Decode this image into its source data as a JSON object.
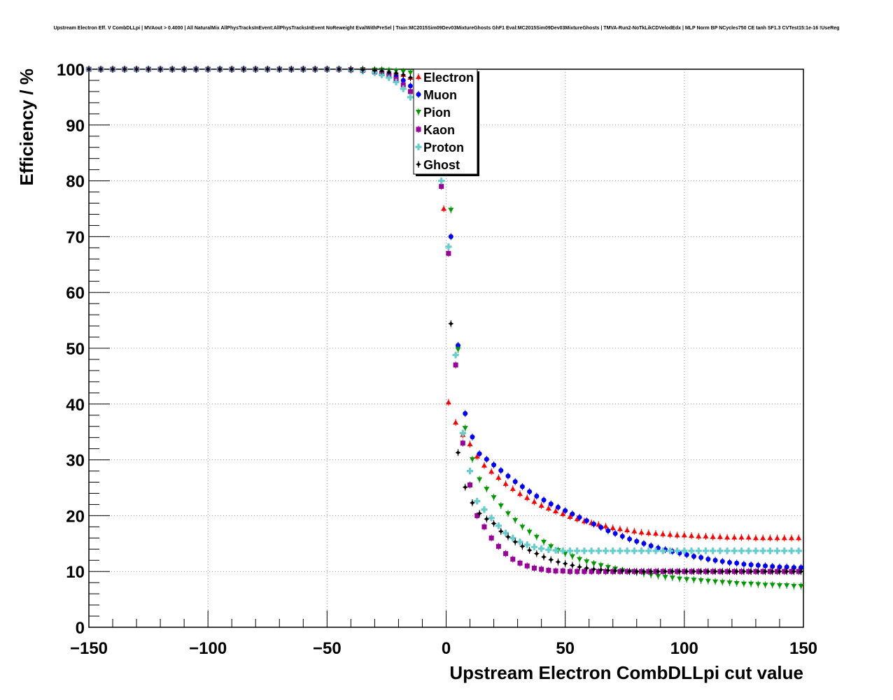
{
  "chart_data": {
    "type": "scatter",
    "title": "Upstream Electron Eff. V CombDLLpi | MVAout > 0.4000 | All NaturalMix AllPhysTracksInEvent:AllPhysTracksInEvent NoReweight EvalWithPreSel | Train:MC2015Sim09Dev03MixtureGhosts GhF1 Eval:MC2015Sim09Dev03MixtureGhosts | TMVA-Run2-NoTkLikCDVelodEdx | MLP Norm BP NCycles750 CE tanh SF1.3 CVTest15:1e-16 !UseReg",
    "xlabel": "Upstream Electron CombDLLpi cut value",
    "ylabel": "Efficiency / %",
    "xlim": [
      -150,
      150
    ],
    "ylim": [
      0,
      100
    ],
    "xticks": [
      -150,
      -100,
      -50,
      0,
      50,
      100,
      150
    ],
    "xtick_labels": [
      "−150",
      "−100",
      "−50",
      "0",
      "50",
      "100",
      "150"
    ],
    "yticks": [
      0,
      10,
      20,
      30,
      40,
      50,
      60,
      70,
      80,
      90,
      100
    ],
    "grid": true,
    "legend_position": "top-center",
    "series": [
      {
        "name": "Electron",
        "color": "#ff0000",
        "marker": "triangle-up",
        "x": [
          -150,
          -145,
          -140,
          -135,
          -130,
          -125,
          -120,
          -115,
          -110,
          -105,
          -100,
          -95,
          -90,
          -85,
          -80,
          -75,
          -70,
          -65,
          -60,
          -55,
          -50,
          -45,
          -40,
          -35,
          -30,
          -27,
          -24,
          -21,
          -18,
          -15,
          -12,
          -9,
          -6,
          -3,
          -1,
          1,
          4,
          7,
          10,
          13,
          16,
          19,
          22,
          25,
          28,
          31,
          34,
          37,
          40,
          43,
          46,
          49,
          52,
          55,
          58,
          61,
          64,
          67,
          70,
          73,
          76,
          79,
          82,
          85,
          88,
          91,
          94,
          97,
          100,
          103,
          106,
          109,
          112,
          115,
          118,
          121,
          124,
          127,
          130,
          133,
          136,
          139,
          142,
          145,
          148
        ],
        "y": [
          100,
          100,
          100,
          100,
          100,
          100,
          100,
          100,
          100,
          100,
          100,
          100,
          100,
          100,
          100,
          100,
          100,
          100,
          100,
          100,
          100,
          100,
          100,
          99.9,
          99.8,
          99.7,
          99.5,
          99.3,
          99,
          98.5,
          97.5,
          95.5,
          91,
          84,
          75,
          40.3,
          36.7,
          34.5,
          32.8,
          30.6,
          29,
          27.9,
          26.8,
          25.7,
          24.8,
          23.9,
          23.2,
          22.5,
          21.8,
          21.3,
          20.8,
          20.3,
          19.8,
          19.4,
          19,
          18.7,
          18.4,
          18.1,
          17.8,
          17.6,
          17.4,
          17.2,
          17,
          16.9,
          16.8,
          16.7,
          16.6,
          16.5,
          16.5,
          16.4,
          16.3,
          16.3,
          16.2,
          16.2,
          16.1,
          16.1,
          16.1,
          16.1,
          16,
          16,
          16,
          16,
          16,
          16,
          16
        ]
      },
      {
        "name": "Muon",
        "color": "#0000ff",
        "marker": "circle",
        "x": [
          -150,
          -145,
          -140,
          -135,
          -130,
          -125,
          -120,
          -115,
          -110,
          -105,
          -100,
          -95,
          -90,
          -85,
          -80,
          -75,
          -70,
          -65,
          -60,
          -55,
          -50,
          -45,
          -40,
          -35,
          -30,
          -27,
          -24,
          -21,
          -18,
          -15,
          -12,
          -9,
          -6,
          -3,
          -1,
          2,
          5,
          8,
          11,
          14,
          17,
          20,
          23,
          26,
          29,
          32,
          35,
          38,
          41,
          44,
          47,
          50,
          53,
          56,
          59,
          62,
          65,
          68,
          71,
          74,
          77,
          80,
          83,
          86,
          89,
          92,
          95,
          98,
          101,
          104,
          107,
          110,
          113,
          116,
          119,
          122,
          125,
          128,
          131,
          134,
          137,
          140,
          143,
          146,
          149
        ],
        "y": [
          100,
          100,
          100,
          100,
          100,
          100,
          100,
          100,
          100,
          100,
          100,
          100,
          100,
          100,
          100,
          100,
          100,
          100,
          100,
          100,
          100,
          100,
          99.9,
          99.8,
          99.6,
          99.4,
          99.1,
          98.7,
          98,
          97,
          95.8,
          94.5,
          92,
          88,
          82,
          70,
          50.5,
          38.3,
          34.1,
          31.1,
          30.1,
          29.1,
          28.1,
          27.1,
          26.1,
          25.2,
          24.3,
          23.5,
          22.8,
          22.1,
          21.5,
          20.9,
          20.3,
          19.7,
          19.1,
          18.5,
          17.9,
          17.3,
          16.8,
          16.3,
          15.8,
          15.4,
          15,
          14.6,
          14.2,
          13.9,
          13.6,
          13.3,
          13,
          12.7,
          12.5,
          12.2,
          12,
          11.8,
          11.6,
          11.5,
          11.3,
          11.2,
          11.1,
          11,
          10.9,
          10.8,
          10.8,
          10.7,
          10.7
        ]
      },
      {
        "name": "Pion",
        "color": "#009900",
        "marker": "triangle-down",
        "x": [
          -150,
          -145,
          -140,
          -135,
          -130,
          -125,
          -120,
          -115,
          -110,
          -105,
          -100,
          -95,
          -90,
          -85,
          -80,
          -75,
          -70,
          -65,
          -60,
          -55,
          -50,
          -45,
          -40,
          -35,
          -30,
          -27,
          -24,
          -21,
          -18,
          -15,
          -12,
          -9,
          -6,
          -3,
          0,
          2,
          5,
          8,
          11,
          14,
          17,
          20,
          23,
          26,
          29,
          32,
          35,
          38,
          41,
          44,
          47,
          50,
          53,
          56,
          59,
          62,
          65,
          68,
          71,
          74,
          77,
          80,
          83,
          86,
          89,
          92,
          95,
          98,
          101,
          104,
          107,
          110,
          113,
          116,
          119,
          122,
          125,
          128,
          131,
          134,
          137,
          140,
          143,
          146,
          149
        ],
        "y": [
          100,
          100,
          100,
          100,
          100,
          100,
          100,
          100,
          100,
          100,
          100,
          100,
          100,
          100,
          100,
          100,
          100,
          100,
          100,
          100,
          100,
          100,
          100,
          100,
          99.9,
          99.9,
          99.8,
          99.7,
          99.6,
          99.4,
          99,
          98.5,
          97,
          94,
          88,
          74.8,
          49.8,
          35.7,
          30.1,
          26.5,
          24.8,
          23.3,
          21.8,
          20.4,
          19.2,
          18,
          17.1,
          16.2,
          15.3,
          14.5,
          13.8,
          13.2,
          12.7,
          12.2,
          11.8,
          11.4,
          11.1,
          10.8,
          10.5,
          10.2,
          10,
          9.8,
          9.6,
          9.4,
          9.2,
          9,
          8.9,
          8.7,
          8.6,
          8.5,
          8.4,
          8.3,
          8.2,
          8.1,
          8,
          7.9,
          7.8,
          7.8,
          7.7,
          7.6,
          7.6,
          7.5,
          7.5,
          7.4,
          7.4
        ]
      },
      {
        "name": "Kaon",
        "color": "#990099",
        "marker": "square",
        "x": [
          -150,
          -145,
          -140,
          -135,
          -130,
          -125,
          -120,
          -115,
          -110,
          -105,
          -100,
          -95,
          -90,
          -85,
          -80,
          -75,
          -70,
          -65,
          -60,
          -55,
          -50,
          -45,
          -40,
          -35,
          -30,
          -27,
          -24,
          -21,
          -18,
          -15,
          -12,
          -9,
          -6,
          -3,
          -2,
          1,
          4,
          7,
          10,
          13,
          16,
          19,
          22,
          25,
          28,
          31,
          34,
          37,
          40,
          43,
          46,
          49,
          52,
          55,
          58,
          61,
          64,
          67,
          70,
          73,
          76,
          79,
          82,
          85,
          88,
          91,
          94,
          97,
          100,
          103,
          106,
          109,
          112,
          115,
          118,
          121,
          124,
          127,
          130,
          133,
          136,
          139,
          142,
          145,
          148
        ],
        "y": [
          100,
          100,
          100,
          100,
          100,
          100,
          100,
          100,
          100,
          100,
          100,
          100,
          100,
          100,
          100,
          100,
          100,
          100,
          100,
          100,
          100,
          100,
          99.9,
          99.8,
          99.5,
          99.2,
          98.8,
          98.2,
          97.2,
          96,
          94.8,
          92.5,
          89.5,
          85,
          79,
          67,
          47,
          33,
          25.5,
          20,
          18,
          16,
          14.5,
          13.2,
          12.2,
          11.5,
          11,
          10.6,
          10.4,
          10.2,
          10.1,
          10.1,
          10,
          10,
          10,
          10,
          10,
          10,
          10,
          10,
          10,
          10,
          10,
          10,
          10,
          10,
          10,
          10,
          10,
          10,
          10,
          10,
          10,
          10,
          10,
          10,
          10,
          10,
          10,
          10,
          10,
          10,
          10,
          10,
          10
        ]
      },
      {
        "name": "Proton",
        "color": "#66cccc",
        "marker": "cross",
        "x": [
          -150,
          -145,
          -140,
          -135,
          -130,
          -125,
          -120,
          -115,
          -110,
          -105,
          -100,
          -95,
          -90,
          -85,
          -80,
          -75,
          -70,
          -65,
          -60,
          -55,
          -50,
          -45,
          -40,
          -35,
          -30,
          -27,
          -24,
          -21,
          -18,
          -15,
          -12,
          -9,
          -6,
          -3,
          -2,
          1,
          4,
          7,
          10,
          13,
          16,
          19,
          22,
          25,
          28,
          31,
          34,
          37,
          40,
          43,
          46,
          49,
          52,
          55,
          58,
          61,
          64,
          67,
          70,
          73,
          76,
          79,
          82,
          85,
          88,
          91,
          94,
          97,
          100,
          103,
          106,
          109,
          112,
          115,
          118,
          121,
          124,
          127,
          130,
          133,
          136,
          139,
          142,
          145,
          148
        ],
        "y": [
          100,
          100,
          100,
          100,
          100,
          100,
          100,
          100,
          100,
          100,
          100,
          100,
          100,
          100,
          100,
          100,
          100,
          100,
          100,
          100,
          100,
          100,
          99.9,
          99.7,
          99.4,
          99,
          98.5,
          97.7,
          96.5,
          95,
          93.5,
          91.5,
          88.5,
          84.5,
          80,
          68.2,
          48.8,
          34.8,
          28,
          22.6,
          21.1,
          19.6,
          18.2,
          16.9,
          16,
          15.3,
          14.8,
          14.4,
          14.1,
          13.9,
          13.8,
          13.7,
          13.7,
          13.7,
          13.7,
          13.7,
          13.7,
          13.7,
          13.7,
          13.7,
          13.7,
          13.7,
          13.7,
          13.7,
          13.7,
          13.7,
          13.7,
          13.7,
          13.7,
          13.7,
          13.7,
          13.7,
          13.7,
          13.7,
          13.7,
          13.7,
          13.7,
          13.7,
          13.7,
          13.7,
          13.7,
          13.7,
          13.7,
          13.7,
          13.7
        ]
      },
      {
        "name": "Ghost",
        "color": "#000000",
        "marker": "star",
        "x": [
          -150,
          -145,
          -140,
          -135,
          -130,
          -125,
          -120,
          -115,
          -110,
          -105,
          -100,
          -95,
          -90,
          -85,
          -80,
          -75,
          -70,
          -65,
          -60,
          -55,
          -50,
          -45,
          -40,
          -35,
          -30,
          -27,
          -24,
          -21,
          -18,
          -15,
          -12,
          -9,
          -6,
          -3,
          0,
          2,
          5,
          8,
          11,
          14,
          17,
          20,
          23,
          26,
          29,
          32,
          35,
          38,
          41,
          44,
          47,
          50,
          53,
          56,
          59,
          62,
          65,
          68,
          71,
          74,
          77,
          80,
          83,
          86,
          89,
          92,
          95,
          98,
          101,
          104,
          107,
          110,
          113,
          116,
          119,
          122,
          125,
          128,
          131,
          134,
          137,
          140,
          143,
          146,
          149
        ],
        "y": [
          100,
          100,
          100,
          100,
          100,
          100,
          100,
          100,
          100,
          100,
          100,
          100,
          100,
          100,
          100,
          100,
          100,
          100,
          100,
          100,
          100,
          100,
          100,
          99.9,
          99.8,
          99.7,
          99.5,
          99.3,
          99,
          98.5,
          97.5,
          96,
          93.5,
          89.5,
          83,
          54.4,
          31.3,
          25.1,
          22.3,
          20.4,
          19.4,
          18.6,
          17.2,
          16.2,
          15.3,
          14.5,
          13.8,
          13.2,
          12.6,
          12.1,
          11.7,
          11.4,
          11.1,
          10.8,
          10.6,
          10.4,
          10.3,
          10.2,
          10.1,
          10.1,
          10,
          10,
          10,
          10,
          10,
          10,
          10,
          10,
          10,
          10,
          10,
          10,
          10,
          10,
          10,
          10,
          10,
          10,
          10,
          10,
          10,
          10,
          10,
          10,
          10
        ]
      }
    ]
  }
}
